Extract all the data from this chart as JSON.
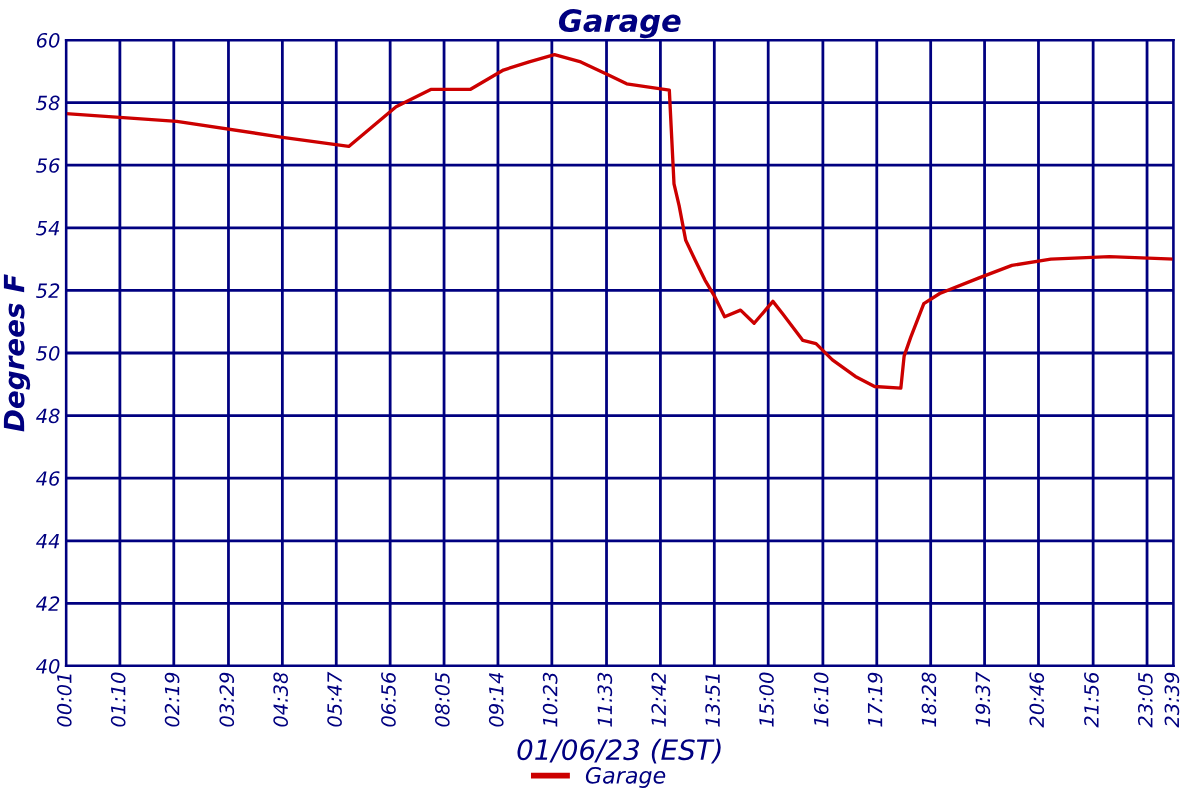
{
  "chart_data": {
    "type": "line",
    "title": "Garage",
    "xlabel": "01/06/23 (EST)",
    "ylabel": "Degrees F",
    "series": [
      {
        "name": "Garage",
        "color": "#cc0000",
        "x": [
          0.0167,
          2.38,
          4.6,
          6.05,
          7.06,
          7.8,
          8.64,
          9.35,
          9.9,
          10.44,
          11.0,
          11.57,
          11.98,
          12.89,
          12.93,
          12.99,
          13.1,
          13.24,
          13.44,
          13.65,
          13.86,
          14.07,
          14.41,
          14.7,
          15.1,
          15.3,
          15.74,
          16.02,
          16.37,
          16.86,
          17.27,
          17.83,
          17.9,
          18.04,
          18.32,
          18.66,
          19.5,
          20.2,
          21.03,
          22.28,
          23.65
        ],
        "values": [
          57.65,
          57.4,
          56.9,
          56.6,
          57.87,
          58.42,
          58.42,
          59.04,
          59.3,
          59.53,
          59.3,
          58.9,
          58.6,
          58.4,
          57.2,
          55.4,
          54.7,
          53.6,
          52.97,
          52.33,
          51.8,
          51.16,
          51.37,
          50.95,
          51.65,
          51.27,
          50.4,
          50.3,
          49.78,
          49.25,
          48.93,
          48.88,
          49.9,
          50.5,
          51.58,
          51.9,
          52.4,
          52.8,
          53.0,
          53.08,
          53.0
        ]
      }
    ],
    "xlim": [
      0.0167,
      23.65
    ],
    "ylim": [
      40,
      60
    ],
    "xticks": [
      {
        "value": 0.0167,
        "label": "00:01"
      },
      {
        "value": 1.1667,
        "label": "01:10"
      },
      {
        "value": 2.3167,
        "label": "02:19"
      },
      {
        "value": 3.4833,
        "label": "03:29"
      },
      {
        "value": 4.6333,
        "label": "04:38"
      },
      {
        "value": 5.7833,
        "label": "05:47"
      },
      {
        "value": 6.9333,
        "label": "06:56"
      },
      {
        "value": 8.0833,
        "label": "08:05"
      },
      {
        "value": 9.2333,
        "label": "09:14"
      },
      {
        "value": 10.3833,
        "label": "10:23"
      },
      {
        "value": 11.55,
        "label": "11:33"
      },
      {
        "value": 12.7,
        "label": "12:42"
      },
      {
        "value": 13.85,
        "label": "13:51"
      },
      {
        "value": 15.0,
        "label": "15:00"
      },
      {
        "value": 16.1667,
        "label": "16:10"
      },
      {
        "value": 17.3167,
        "label": "17:19"
      },
      {
        "value": 18.4667,
        "label": "18:28"
      },
      {
        "value": 19.6167,
        "label": "19:37"
      },
      {
        "value": 20.7667,
        "label": "20:46"
      },
      {
        "value": 21.9333,
        "label": "21:56"
      },
      {
        "value": 23.0833,
        "label": "23:05"
      },
      {
        "value": 23.65,
        "label": "23:39"
      }
    ],
    "yticks": [
      40,
      42,
      44,
      46,
      48,
      50,
      52,
      54,
      56,
      58,
      60
    ],
    "grid": true,
    "legend": "bottom",
    "marker": "none",
    "line_style": "solid"
  }
}
